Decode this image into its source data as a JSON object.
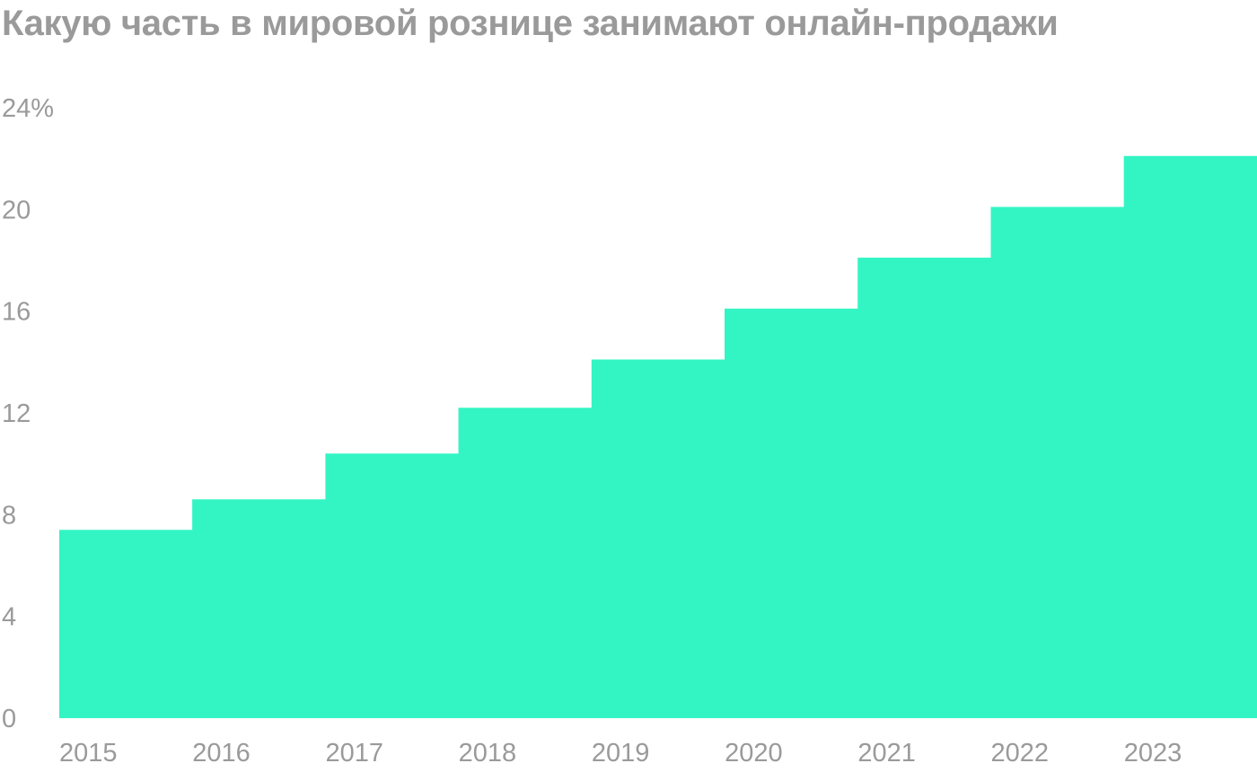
{
  "chart_data": {
    "type": "area",
    "title": "Какую часть в мировой рознице занимают онлайн-продажи",
    "xlabel": "",
    "ylabel": "",
    "x": [
      "2015",
      "2016",
      "2017",
      "2018",
      "2019",
      "2020",
      "2021",
      "2022",
      "2023"
    ],
    "values": [
      7.4,
      8.6,
      10.4,
      12.2,
      14.1,
      16.1,
      18.1,
      20.1,
      22.1
    ],
    "ylim": [
      0,
      24
    ],
    "y_ticks": [
      "0",
      "4",
      "8",
      "12",
      "16",
      "20",
      "24%"
    ],
    "step": true,
    "grid": false,
    "legend": "none",
    "colors": {
      "fill": "#33f5c4",
      "text": "#9a9a9a"
    }
  }
}
